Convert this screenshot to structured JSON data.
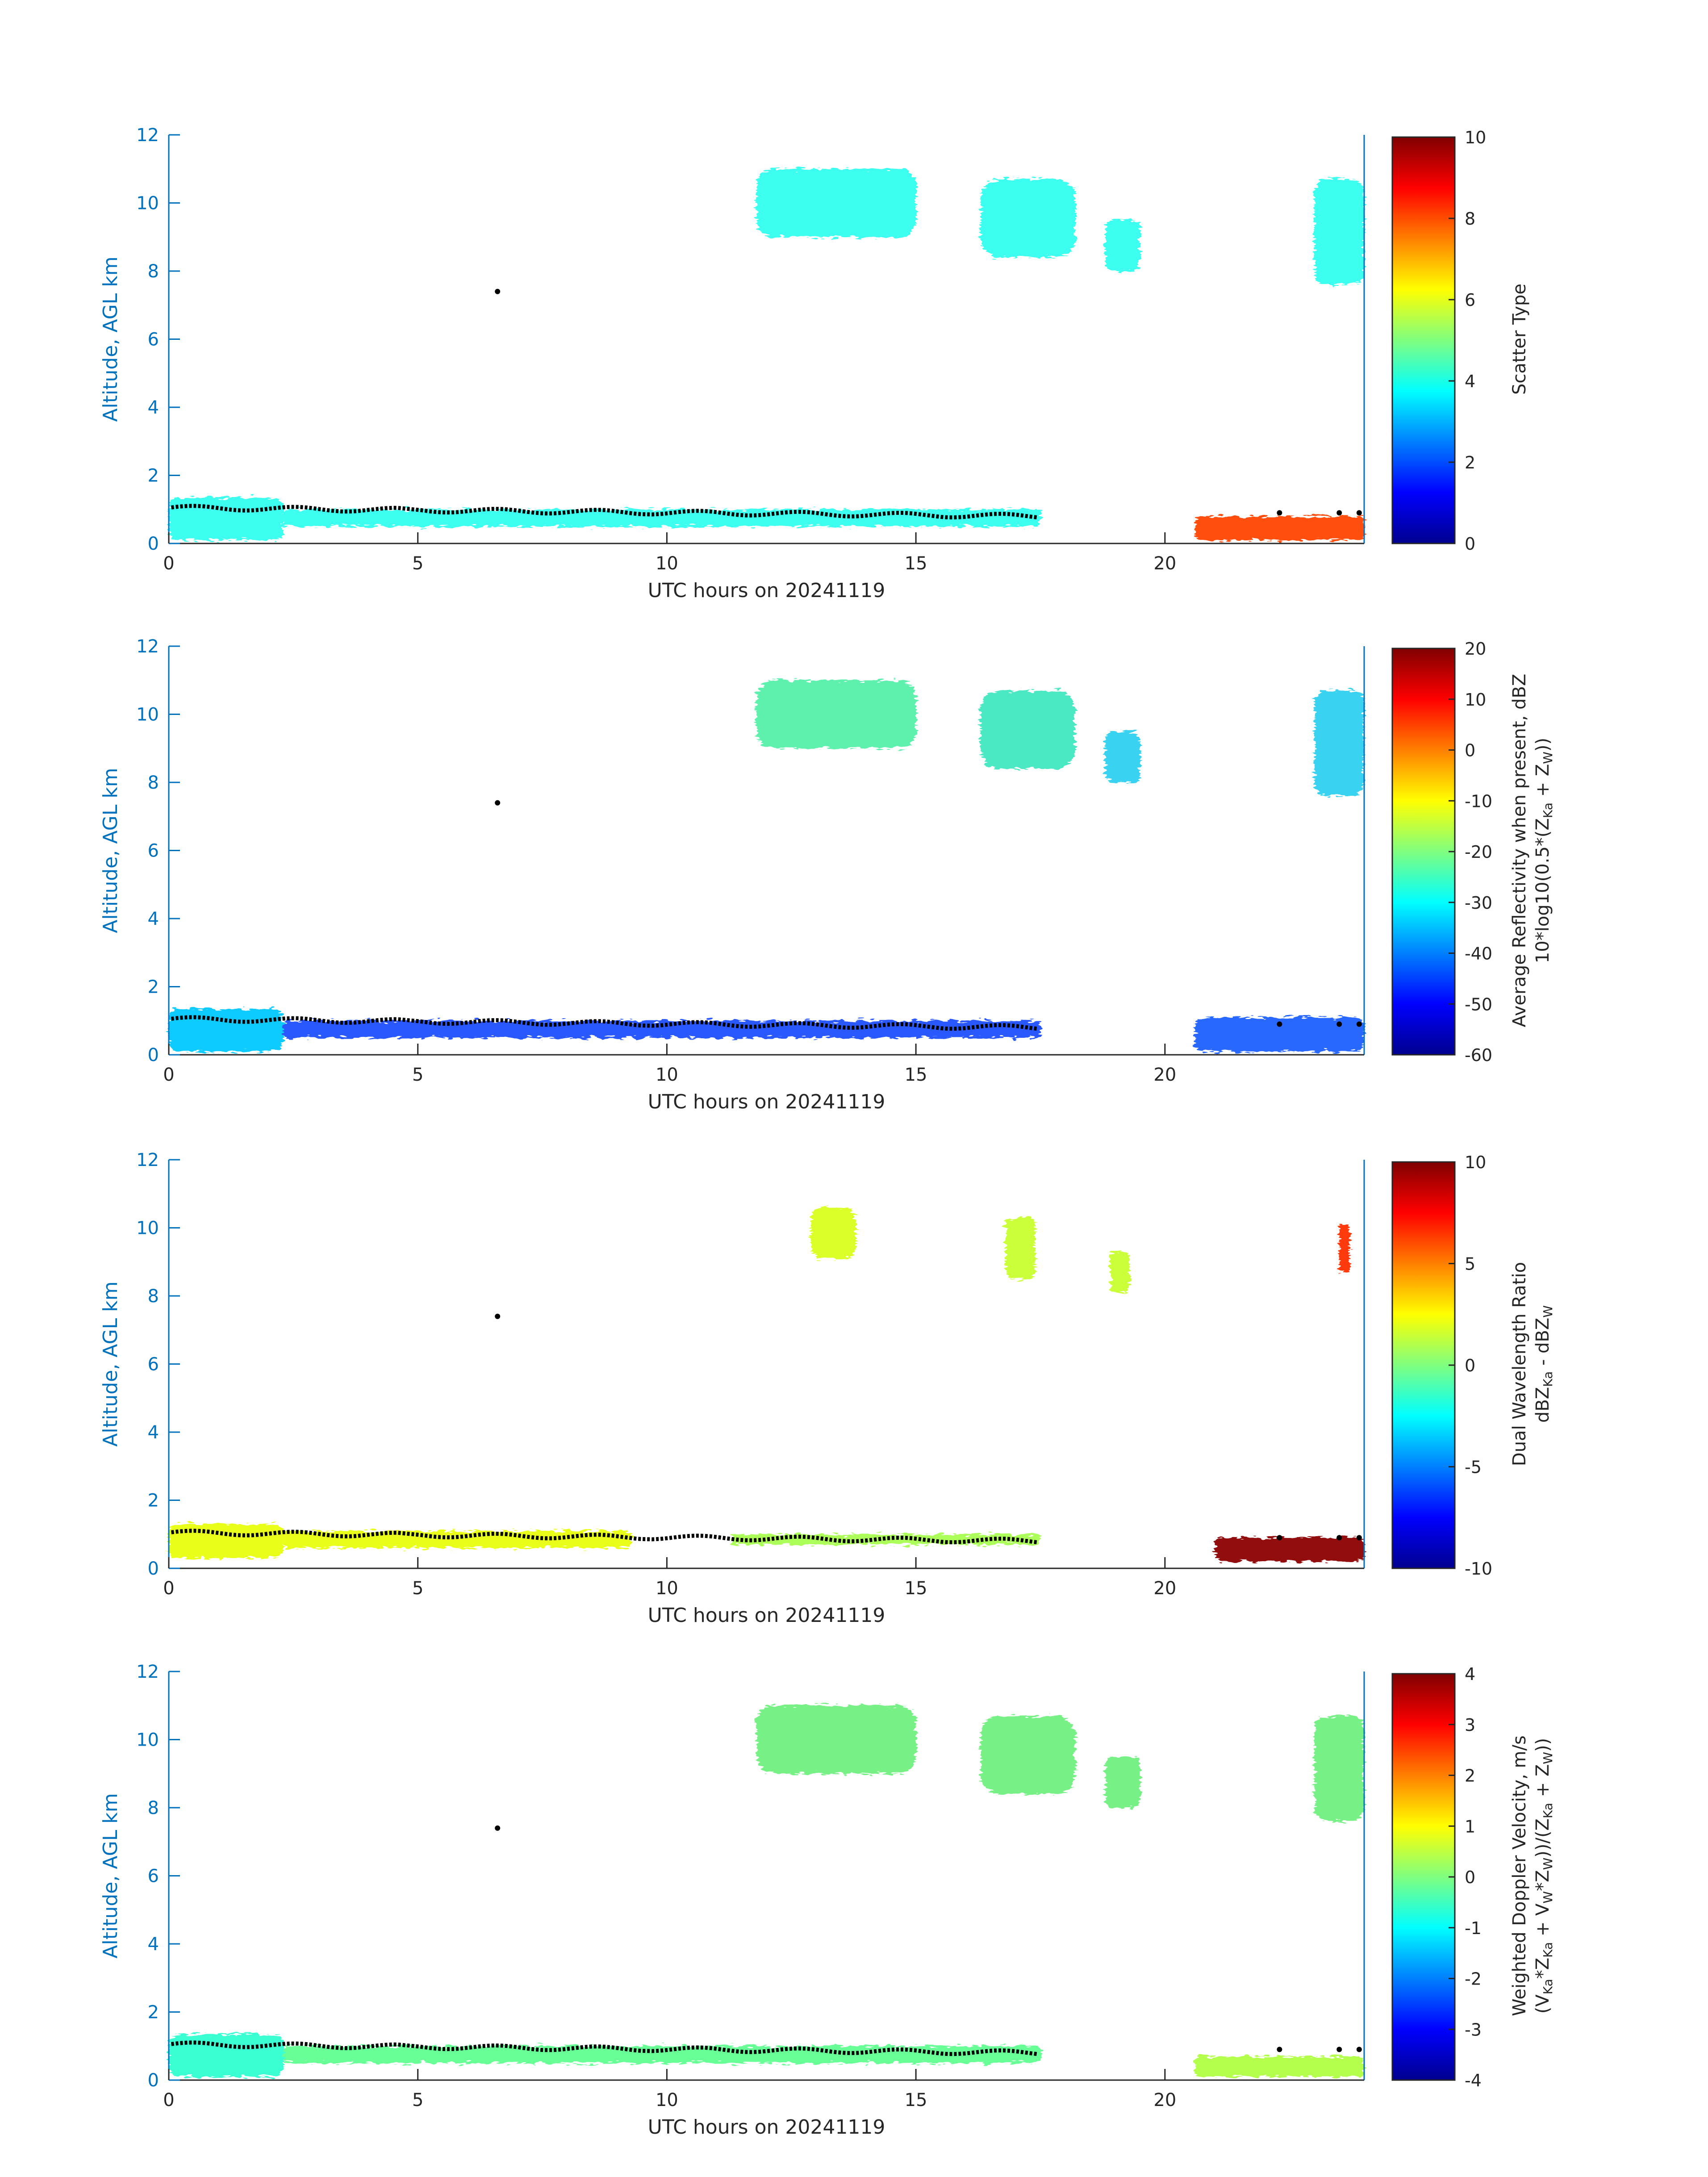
{
  "colors": {
    "axis": "#0072BD",
    "text": "#262626",
    "ceiling_markers": "#000000",
    "jet_colormap": [
      "#00008F",
      "#0000FF",
      "#00FFFF",
      "#FFFF00",
      "#FF0000",
      "#800000"
    ]
  },
  "chart_data": [
    {
      "type": "heatmap",
      "title": "",
      "xlabel": "UTC hours on 20241119",
      "ylabel": "Altitude, AGL km",
      "xlim": [
        0,
        24
      ],
      "ylim": [
        0,
        12
      ],
      "xticks": [
        0,
        5,
        10,
        15,
        20
      ],
      "yticks": [
        0,
        2,
        4,
        6,
        8,
        10,
        12
      ],
      "colorbar": {
        "label_lines": [
          "Scatter Type"
        ],
        "clim": [
          0,
          10
        ],
        "ticks": [
          0,
          2,
          4,
          6,
          8,
          10
        ]
      },
      "regions": [
        {
          "x": [
            0.0,
            2.3
          ],
          "y": [
            0.1,
            1.35
          ],
          "color": "#33FFEE"
        },
        {
          "x": [
            2.3,
            17.5
          ],
          "y": [
            0.5,
            1.0
          ],
          "color": "#33FFEE"
        },
        {
          "x": [
            11.8,
            15.0
          ],
          "y": [
            9.0,
            11.0
          ],
          "color": "#33FFEE"
        },
        {
          "x": [
            16.3,
            18.2
          ],
          "y": [
            8.4,
            10.7
          ],
          "color": "#33FFEE"
        },
        {
          "x": [
            18.8,
            19.5
          ],
          "y": [
            8.0,
            9.5
          ],
          "color": "#33FFEE"
        },
        {
          "x": [
            23.0,
            24.0
          ],
          "y": [
            7.6,
            10.7
          ],
          "color": "#33FFEE"
        },
        {
          "x": [
            20.6,
            24.0
          ],
          "y": [
            0.1,
            0.8
          ],
          "color": "#FF4400"
        }
      ],
      "ceiling_points": [
        [
          6.6,
          7.4
        ],
        [
          22.3,
          0.9
        ],
        [
          23.5,
          0.9
        ],
        [
          23.9,
          0.9
        ]
      ]
    },
    {
      "type": "heatmap",
      "title": "",
      "xlabel": "UTC hours on 20241119",
      "ylabel": "Altitude, AGL km",
      "xlim": [
        0,
        24
      ],
      "ylim": [
        0,
        12
      ],
      "xticks": [
        0,
        5,
        10,
        15,
        20
      ],
      "yticks": [
        0,
        2,
        4,
        6,
        8,
        10,
        12
      ],
      "colorbar": {
        "label_lines": [
          "Average Reflectivity when present, dBZ",
          "10*log10(0.5*(Z",
          "Ka",
          " + Z",
          "W",
          "))"
        ],
        "clim": [
          -60,
          20
        ],
        "ticks": [
          -60,
          -50,
          -40,
          -30,
          -20,
          -10,
          0,
          10,
          20
        ]
      },
      "regions": [
        {
          "x": [
            0.0,
            2.3
          ],
          "y": [
            0.1,
            1.35
          ],
          "color": "#00C8FF"
        },
        {
          "x": [
            2.3,
            17.5
          ],
          "y": [
            0.5,
            1.0
          ],
          "color": "#2050FF"
        },
        {
          "x": [
            11.8,
            15.0
          ],
          "y": [
            9.0,
            11.0
          ],
          "color": "#55F0AA"
        },
        {
          "x": [
            16.3,
            18.2
          ],
          "y": [
            8.4,
            10.7
          ],
          "color": "#40E8C0"
        },
        {
          "x": [
            18.8,
            19.5
          ],
          "y": [
            8.0,
            9.5
          ],
          "color": "#30D0F0"
        },
        {
          "x": [
            23.0,
            24.0
          ],
          "y": [
            7.6,
            10.7
          ],
          "color": "#30D0F0"
        },
        {
          "x": [
            20.6,
            24.0
          ],
          "y": [
            0.1,
            1.1
          ],
          "color": "#2060FF"
        }
      ],
      "ceiling_points": [
        [
          6.6,
          7.4
        ],
        [
          22.3,
          0.9
        ],
        [
          23.5,
          0.9
        ],
        [
          23.9,
          0.9
        ]
      ]
    },
    {
      "type": "heatmap",
      "title": "",
      "xlabel": "UTC hours on 20241119",
      "ylabel": "Altitude, AGL km",
      "xlim": [
        0,
        24
      ],
      "ylim": [
        0,
        12
      ],
      "xticks": [
        0,
        5,
        10,
        15,
        20
      ],
      "yticks": [
        0,
        2,
        4,
        6,
        8,
        10,
        12
      ],
      "colorbar": {
        "label_lines": [
          "Dual Wavelength Ratio",
          "dBZ",
          "Ka",
          " - dBZ",
          "W"
        ],
        "clim": [
          -10,
          10
        ],
        "ticks": [
          -10,
          -5,
          0,
          5,
          10
        ]
      },
      "regions": [
        {
          "x": [
            0.0,
            2.3
          ],
          "y": [
            0.3,
            1.3
          ],
          "color": "#E8FF10"
        },
        {
          "x": [
            2.3,
            9.3
          ],
          "y": [
            0.6,
            1.1
          ],
          "color": "#E8FF10"
        },
        {
          "x": [
            11.3,
            17.5
          ],
          "y": [
            0.7,
            1.0
          ],
          "color": "#A8FF50"
        },
        {
          "x": [
            12.9,
            13.8
          ],
          "y": [
            9.1,
            10.6
          ],
          "color": "#D8FF20"
        },
        {
          "x": [
            16.8,
            17.4
          ],
          "y": [
            8.5,
            10.3
          ],
          "color": "#C8FF30"
        },
        {
          "x": [
            18.9,
            19.3
          ],
          "y": [
            8.1,
            9.3
          ],
          "color": "#C8FF30"
        },
        {
          "x": [
            23.5,
            23.7
          ],
          "y": [
            8.7,
            10.1
          ],
          "color": "#FF3000"
        },
        {
          "x": [
            21.0,
            24.0
          ],
          "y": [
            0.2,
            0.9
          ],
          "color": "#8C0000"
        }
      ],
      "ceiling_points": [
        [
          6.6,
          7.4
        ],
        [
          22.3,
          0.9
        ],
        [
          23.5,
          0.9
        ],
        [
          23.9,
          0.9
        ]
      ]
    },
    {
      "type": "heatmap",
      "title": "",
      "xlabel": "UTC hours on 20241119",
      "ylabel": "Altitude, AGL km",
      "xlim": [
        0,
        24
      ],
      "ylim": [
        0,
        12
      ],
      "xticks": [
        0,
        5,
        10,
        15,
        20
      ],
      "yticks": [
        0,
        2,
        4,
        6,
        8,
        10,
        12
      ],
      "colorbar": {
        "label_lines": [
          "Weighted Doppler Velocity, m/s",
          "(V",
          "Ka",
          "*Z",
          "Ka",
          " + V",
          "W",
          "*Z",
          "W",
          "))/(Z",
          "Ka",
          " + Z",
          "W",
          "))"
        ],
        "clim": [
          -4,
          4
        ],
        "ticks": [
          -4,
          -3,
          -2,
          -1,
          0,
          1,
          2,
          3,
          4
        ]
      },
      "regions": [
        {
          "x": [
            0.0,
            2.3
          ],
          "y": [
            0.1,
            1.35
          ],
          "color": "#30FFD0"
        },
        {
          "x": [
            2.3,
            17.5
          ],
          "y": [
            0.5,
            1.0
          ],
          "color": "#60FF90"
        },
        {
          "x": [
            11.8,
            15.0
          ],
          "y": [
            9.0,
            11.0
          ],
          "color": "#70F080"
        },
        {
          "x": [
            16.3,
            18.2
          ],
          "y": [
            8.4,
            10.7
          ],
          "color": "#70F080"
        },
        {
          "x": [
            18.8,
            19.5
          ],
          "y": [
            8.0,
            9.5
          ],
          "color": "#70F080"
        },
        {
          "x": [
            23.0,
            24.0
          ],
          "y": [
            7.6,
            10.7
          ],
          "color": "#70F080"
        },
        {
          "x": [
            20.6,
            24.0
          ],
          "y": [
            0.1,
            0.7
          ],
          "color": "#B0FF40"
        }
      ],
      "ceiling_points": [
        [
          6.6,
          7.4
        ],
        [
          22.3,
          0.9
        ],
        [
          23.5,
          0.9
        ],
        [
          23.9,
          0.9
        ]
      ]
    }
  ]
}
